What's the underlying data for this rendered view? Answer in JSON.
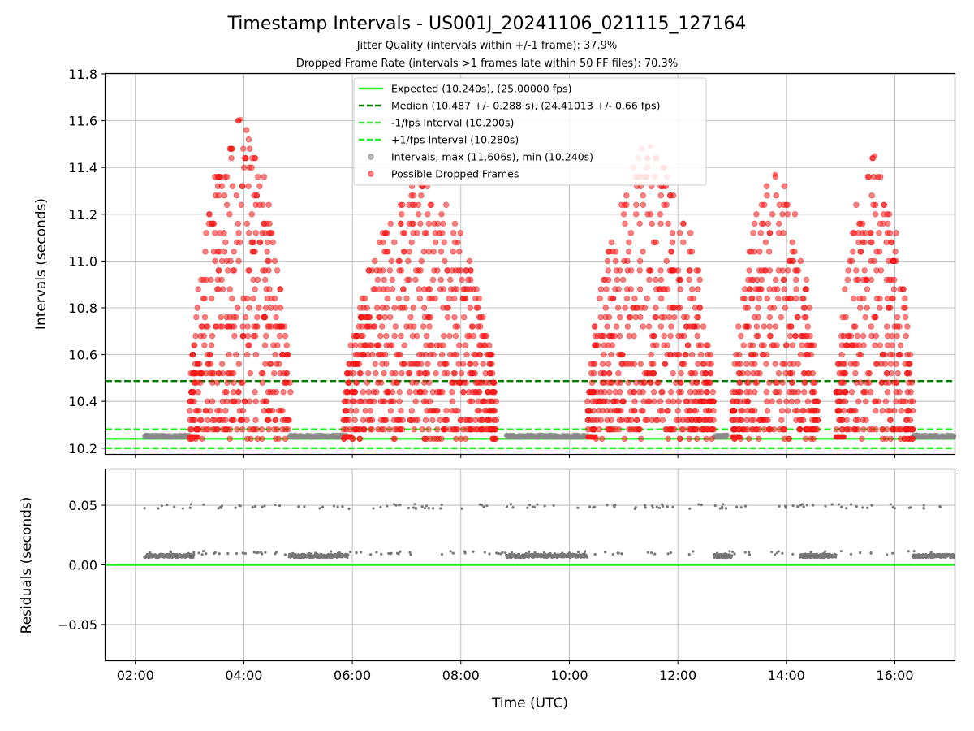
{
  "chart_data": [
    {
      "type": "scatter",
      "title": "Timestamp Intervals - US001J_20241106_021115_127164",
      "subtitles": [
        "Jitter Quality (intervals within +/-1 frame): 37.9%",
        "Dropped Frame Rate (intervals >1 frames late within 50 FF files): 70.3%"
      ],
      "xlabel": "",
      "ylabel": "Intervals (seconds)",
      "xlim": [
        "01:27",
        "17:06"
      ],
      "ylim": [
        10.175,
        11.8
      ],
      "yticks": [
        10.2,
        10.4,
        10.6,
        10.8,
        11.0,
        11.2,
        11.4,
        11.6,
        11.8
      ],
      "ytick_labels": [
        "10.2",
        "10.4",
        "10.6",
        "10.8",
        "11.0",
        "11.2",
        "11.4",
        "11.6",
        "11.8"
      ],
      "grid": true,
      "legend_position": "top-center",
      "lines": [
        {
          "name": "Expected (10.240s), (25.00000 fps)",
          "y": 10.24,
          "style": "solid",
          "color": "#22ee22"
        },
        {
          "name": "Median (10.487 +/- 0.288 s), (24.41013 +/- 0.66 fps)",
          "y": 10.487,
          "style": "dashed",
          "color": "#007a00"
        },
        {
          "name": "-1/fps Interval (10.200s)",
          "y": 10.2,
          "style": "dashed",
          "color": "#22ee22"
        },
        {
          "name": "+1/fps Interval (10.280s)",
          "y": 10.28,
          "style": "dashed",
          "color": "#22ee22"
        }
      ],
      "series": [
        {
          "name": "Intervals, max (11.606s), min (10.240s)",
          "color": "#888888",
          "summary": "baseline near 10.245 s during 02:10-03:00, 04:50-05:55, 08:50-10:20, 16:20-17:06; scattered elsewhere"
        },
        {
          "name": "Possible Dropped Frames",
          "color": "#ff1a1a",
          "clusters": [
            {
              "start": "03:00",
              "end": "04:52",
              "max": 11.606
            },
            {
              "start": "05:50",
              "end": "08:40",
              "max": 11.33
            },
            {
              "start": "10:20",
              "end": "12:40",
              "max": 11.49
            },
            {
              "start": "13:00",
              "end": "14:35",
              "max": 11.37
            },
            {
              "start": "14:55",
              "end": "16:20",
              "max": 11.45
            }
          ]
        }
      ]
    },
    {
      "type": "scatter",
      "xlabel": "Time (UTC)",
      "ylabel": "Residuals (seconds)",
      "xlim": [
        "01:27",
        "17:06"
      ],
      "ylim": [
        -0.08,
        0.08
      ],
      "yticks": [
        -0.05,
        0.0,
        0.05
      ],
      "ytick_labels": [
        "−0.05",
        "0.00",
        "0.05"
      ],
      "xtick_labels": [
        "02:00",
        "04:00",
        "06:00",
        "08:00",
        "10:00",
        "12:00",
        "14:00",
        "16:00"
      ],
      "grid": true,
      "zero_line_color": "#22ee22",
      "series": [
        {
          "name": "Residuals",
          "color": "#777777",
          "summary": "dense band near 0.007-0.008 s; sparse points near 0.048-0.05 s"
        }
      ]
    }
  ]
}
